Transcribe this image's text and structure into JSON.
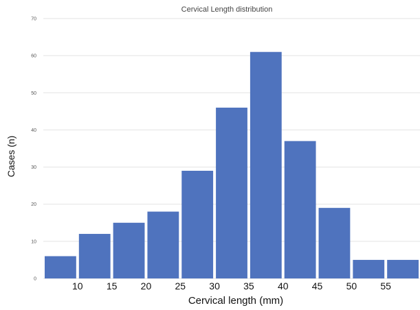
{
  "chart_data": {
    "type": "bar",
    "title": "Cervical Length distribution",
    "xlabel": "Cervical length  (mm)",
    "ylabel": "Cases (n)",
    "ylim": [
      0,
      70
    ],
    "yticks": [
      "0",
      "10",
      "20",
      "30",
      "40",
      "50",
      "60",
      "70"
    ],
    "categories": [
      "5-10",
      "10-15",
      "15-20",
      "20-25",
      "25-30",
      "30-35",
      "35-40",
      "40-45",
      "45-50",
      "50-55",
      "55-60"
    ],
    "values": [
      6,
      12,
      15,
      18,
      29,
      46,
      61,
      37,
      19,
      5,
      5
    ],
    "xtick_labels": [
      "10",
      "15",
      "20",
      "25",
      "30",
      "35",
      "40",
      "45",
      "50",
      "55"
    ],
    "grid": true,
    "bar_color": "#4F73BE"
  }
}
